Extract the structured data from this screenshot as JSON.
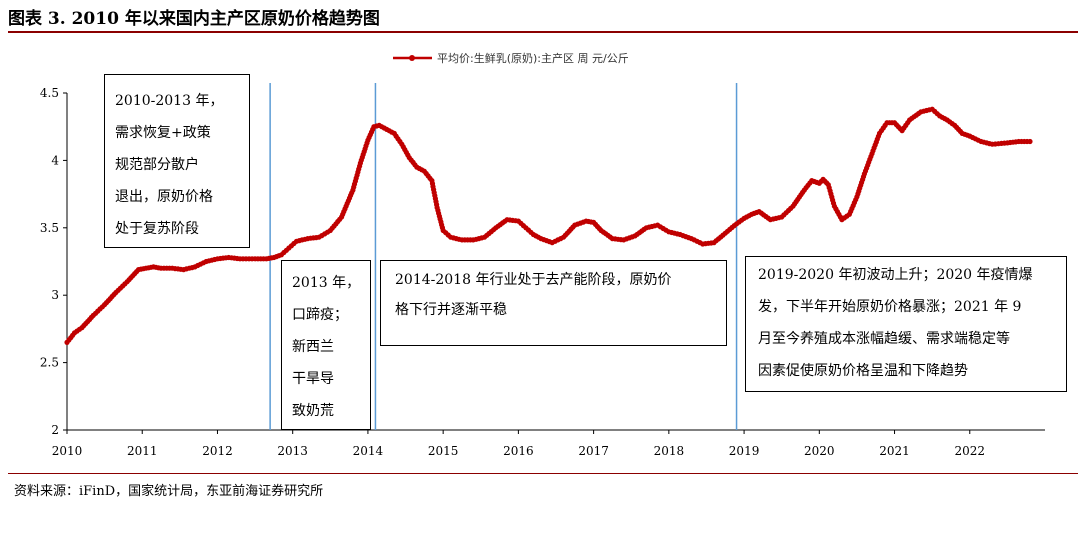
{
  "figure": {
    "title": "图表 3.   2010 年以来国内主产区原奶价格趋势图",
    "source": "资料来源：iFinD，国家统计局，东亚前海证券研究所"
  },
  "colors": {
    "line": "#c00000",
    "vline": "#5b9bd5",
    "rule": "#8b0000"
  },
  "chart_data": {
    "type": "line",
    "title": "",
    "xlabel": "",
    "ylabel": "",
    "xlim": [
      2010.0,
      2023.0
    ],
    "ylim": [
      2,
      4.5
    ],
    "y_ticks": [
      "2",
      "2.5",
      "3",
      "3.5",
      "4",
      "4.5"
    ],
    "x_ticks": [
      "2010",
      "2011",
      "2012",
      "2013",
      "2014",
      "2015",
      "2016",
      "2017",
      "2018",
      "2019",
      "2020",
      "2021",
      "2022"
    ],
    "grid": false,
    "legend": "top-center",
    "series": [
      {
        "name": "平均价:生鲜乳(原奶):主产区 周 元/公斤",
        "x": [
          2010.0,
          2010.1,
          2010.2,
          2010.35,
          2010.5,
          2010.65,
          2010.8,
          2010.95,
          2011.05,
          2011.15,
          2011.25,
          2011.4,
          2011.55,
          2011.7,
          2011.85,
          2012.0,
          2012.15,
          2012.3,
          2012.5,
          2012.65,
          2012.75,
          2012.85,
          2012.95,
          2013.05,
          2013.2,
          2013.35,
          2013.5,
          2013.65,
          2013.8,
          2013.9,
          2014.0,
          2014.08,
          2014.15,
          2014.25,
          2014.35,
          2014.45,
          2014.55,
          2014.65,
          2014.75,
          2014.85,
          2014.92,
          2015.0,
          2015.1,
          2015.25,
          2015.4,
          2015.55,
          2015.7,
          2015.85,
          2016.0,
          2016.1,
          2016.2,
          2016.3,
          2016.45,
          2016.6,
          2016.75,
          2016.9,
          2017.0,
          2017.1,
          2017.25,
          2017.4,
          2017.55,
          2017.7,
          2017.85,
          2018.0,
          2018.15,
          2018.3,
          2018.45,
          2018.6,
          2018.75,
          2018.9,
          2019.0,
          2019.1,
          2019.2,
          2019.35,
          2019.5,
          2019.65,
          2019.8,
          2019.9,
          2020.0,
          2020.05,
          2020.12,
          2020.2,
          2020.3,
          2020.4,
          2020.5,
          2020.6,
          2020.7,
          2020.8,
          2020.9,
          2021.0,
          2021.1,
          2021.2,
          2021.35,
          2021.5,
          2021.6,
          2021.7,
          2021.8,
          2021.9,
          2022.0,
          2022.15,
          2022.3,
          2022.5,
          2022.65,
          2022.8
        ],
        "values": [
          2.65,
          2.72,
          2.76,
          2.85,
          2.93,
          3.02,
          3.1,
          3.19,
          3.2,
          3.21,
          3.2,
          3.2,
          3.19,
          3.21,
          3.25,
          3.27,
          3.28,
          3.27,
          3.27,
          3.27,
          3.28,
          3.3,
          3.35,
          3.4,
          3.42,
          3.43,
          3.48,
          3.58,
          3.78,
          3.98,
          4.15,
          4.25,
          4.26,
          4.23,
          4.2,
          4.12,
          4.02,
          3.95,
          3.92,
          3.85,
          3.65,
          3.48,
          3.43,
          3.41,
          3.41,
          3.43,
          3.5,
          3.56,
          3.55,
          3.5,
          3.45,
          3.42,
          3.39,
          3.43,
          3.52,
          3.55,
          3.54,
          3.48,
          3.42,
          3.41,
          3.44,
          3.5,
          3.52,
          3.47,
          3.45,
          3.42,
          3.38,
          3.39,
          3.46,
          3.53,
          3.57,
          3.6,
          3.62,
          3.56,
          3.58,
          3.66,
          3.78,
          3.85,
          3.83,
          3.86,
          3.82,
          3.66,
          3.56,
          3.6,
          3.73,
          3.9,
          4.05,
          4.2,
          4.28,
          4.28,
          4.22,
          4.3,
          4.36,
          4.38,
          4.33,
          4.3,
          4.26,
          4.2,
          4.18,
          4.14,
          4.12,
          4.13,
          4.14,
          4.14
        ]
      }
    ],
    "vlines": [
      2012.7,
      2014.1,
      2018.9
    ],
    "annotations": [
      {
        "lines": [
          "2010-2013 年，",
          "需求恢复+政策",
          "规范部分散户",
          "退出，原奶价格",
          "处于复苏阶段"
        ]
      },
      {
        "lines": [
          "2013 年，",
          "口蹄疫；",
          "新西兰",
          "干旱导",
          "致奶荒"
        ]
      },
      {
        "lines": [
          "2014-2018 年行业处于去产能阶段，原奶价",
          "格下行并逐渐平稳"
        ]
      },
      {
        "lines": [
          "2019-2020 年初波动上升；2020 年疫情爆",
          "发，下半年开始原奶价格暴涨；2021 年 9",
          "月至今养殖成本涨幅趋缓、需求端稳定等",
          "因素促使原奶价格呈温和下降趋势"
        ]
      }
    ]
  }
}
